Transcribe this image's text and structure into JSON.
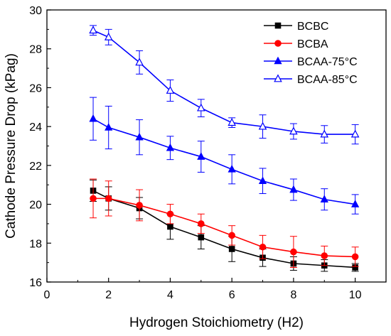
{
  "chart_data": {
    "type": "line",
    "title": "",
    "xlabel": "Hydrogen Stoichiometry (H2)",
    "ylabel": "Cathode Pressure Drop (kPag)",
    "xlim": [
      0,
      11
    ],
    "ylim": [
      16,
      30
    ],
    "xticks": [
      0,
      2,
      4,
      6,
      8,
      10
    ],
    "yticks": [
      16,
      18,
      20,
      22,
      24,
      26,
      28,
      30
    ],
    "x": [
      1.5,
      2,
      3,
      4,
      5,
      6,
      7,
      8,
      9,
      10
    ],
    "legend_position": "top-right",
    "grid": false,
    "series": [
      {
        "name": "BCBC",
        "color": "#000000",
        "marker": "square",
        "values": [
          20.7,
          20.3,
          19.8,
          18.85,
          18.3,
          17.7,
          17.25,
          16.95,
          16.85,
          16.75
        ],
        "errors": [
          0.55,
          0.6,
          0.55,
          0.65,
          0.6,
          0.65,
          0.45,
          0.35,
          0.3,
          0.2
        ]
      },
      {
        "name": "BCBA",
        "color": "#ff0000",
        "marker": "circle",
        "values": [
          20.3,
          20.3,
          19.95,
          19.5,
          19.0,
          18.4,
          17.8,
          17.55,
          17.35,
          17.3
        ],
        "errors": [
          1.0,
          0.9,
          0.8,
          0.5,
          0.5,
          0.5,
          0.6,
          0.8,
          0.5,
          0.5
        ]
      },
      {
        "name": "BCAA-75°C",
        "color": "#0000ff",
        "marker": "triangle-filled",
        "values": [
          24.4,
          23.95,
          23.45,
          22.9,
          22.45,
          21.8,
          21.2,
          20.75,
          20.25,
          20.0
        ],
        "errors": [
          1.1,
          1.1,
          0.9,
          0.6,
          0.8,
          0.75,
          0.65,
          0.55,
          0.55,
          0.5
        ]
      },
      {
        "name": "BCAA-85°C",
        "color": "#0000ff",
        "marker": "triangle-open",
        "values": [
          28.95,
          28.6,
          27.3,
          25.85,
          24.95,
          24.2,
          24.0,
          23.75,
          23.6,
          23.6
        ],
        "errors": [
          0.25,
          0.4,
          0.6,
          0.55,
          0.45,
          0.25,
          0.6,
          0.4,
          0.45,
          0.5
        ]
      }
    ]
  }
}
